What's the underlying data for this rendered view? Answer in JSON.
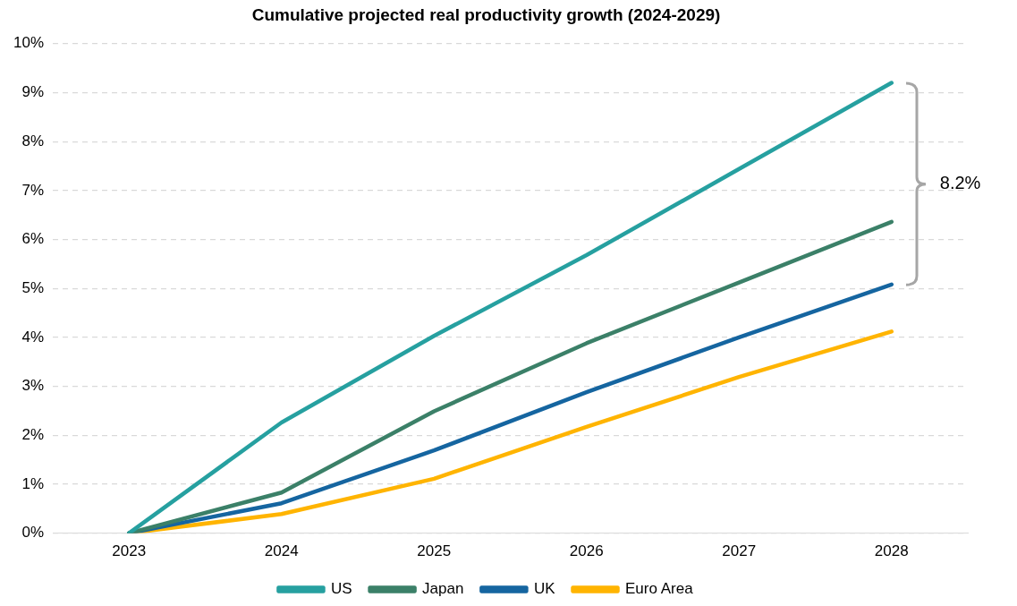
{
  "chart_data": {
    "type": "line",
    "title": "Cumulative projected real productivity growth (2024-2029)",
    "categories": [
      "2023",
      "2024",
      "2025",
      "2026",
      "2027",
      "2028"
    ],
    "series": [
      {
        "name": "US",
        "color": "#26a0a0",
        "values": [
          0,
          2.26,
          4.03,
          5.68,
          7.44,
          9.2
        ]
      },
      {
        "name": "Japan",
        "color": "#3b8068",
        "values": [
          0,
          0.83,
          2.49,
          3.88,
          5.12,
          6.36
        ]
      },
      {
        "name": "UK",
        "color": "#1565a0",
        "values": [
          0,
          0.61,
          1.69,
          2.88,
          4.0,
          5.08
        ]
      },
      {
        "name": "Euro Area",
        "color": "#ffb400",
        "values": [
          0,
          0.39,
          1.11,
          2.17,
          3.19,
          4.12
        ]
      }
    ],
    "ylim": [
      0,
      10
    ],
    "yticks": [
      {
        "value": 0,
        "label": "0%"
      },
      {
        "value": 1,
        "label": "1%"
      },
      {
        "value": 2,
        "label": "2%"
      },
      {
        "value": 3,
        "label": "3%"
      },
      {
        "value": 4,
        "label": "4%"
      },
      {
        "value": 5,
        "label": "5%"
      },
      {
        "value": 6,
        "label": "6%"
      },
      {
        "value": 7,
        "label": "7%"
      },
      {
        "value": 8,
        "label": "8%"
      },
      {
        "value": 9,
        "label": "9%"
      },
      {
        "value": 10,
        "label": "10%"
      }
    ],
    "grid": "y",
    "legend": "bottom",
    "marker": "none",
    "line_style": "solid",
    "annotations": [
      "8.2%"
    ]
  }
}
